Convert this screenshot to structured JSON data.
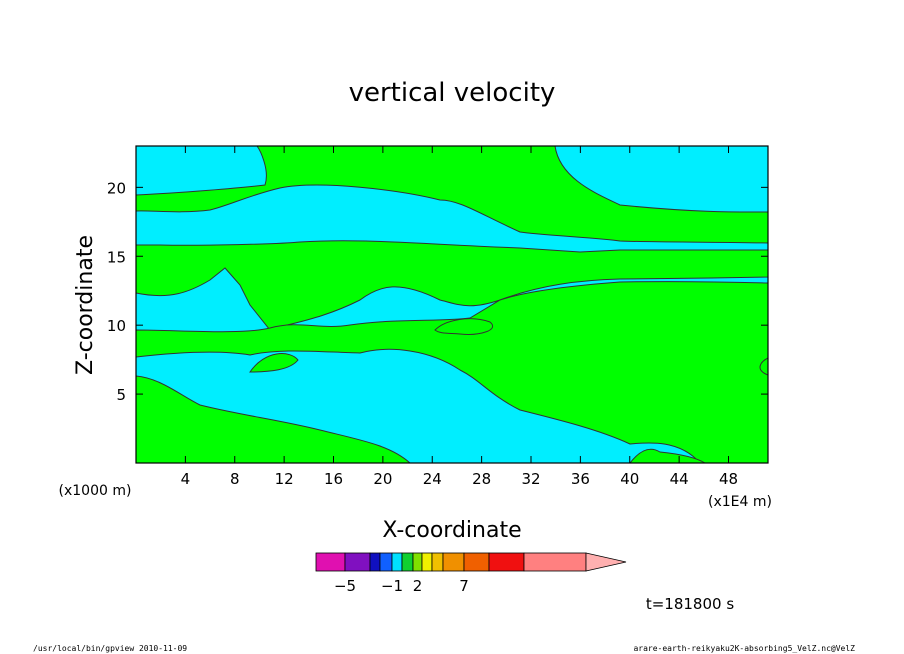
{
  "chart_data": {
    "type": "contour",
    "title": "vertical velocity",
    "xlabel": "X-coordinate",
    "ylabel": "Z-coordinate",
    "x_unit_left": "(x1000 m)",
    "x_unit_right": "(x1E4 m)",
    "xlim": [
      0,
      51.2
    ],
    "ylim": [
      0,
      23
    ],
    "x_ticks": [
      4,
      8,
      12,
      16,
      20,
      24,
      28,
      32,
      36,
      40,
      44,
      48
    ],
    "y_ticks": [
      5,
      10,
      15,
      20
    ],
    "time_label": "t=181800 s",
    "colorbar": {
      "colors": [
        "#e010b0",
        "#8010c0",
        "#1010c0",
        "#1060ff",
        "#00e0ff",
        "#10d030",
        "#80e000",
        "#f0f000",
        "#f0c000",
        "#f09000",
        "#f06000",
        "#f01010",
        "#ff8080",
        "#ffb0b0"
      ],
      "labels": [
        {
          "text": "−5",
          "bin": 1
        },
        {
          "text": "−1",
          "bin": 4
        },
        {
          "text": "2",
          "bin": 6.5
        },
        {
          "text": "7",
          "bin": 10
        }
      ]
    },
    "fill_colors": {
      "positive": "#00ff00",
      "negative": "#00eeff"
    }
  },
  "footer": {
    "left": "/usr/local/bin/gpview  2010-11-09",
    "right": "arare-earth-reikyaku2K-absorbing5_VelZ.nc@VelZ"
  }
}
